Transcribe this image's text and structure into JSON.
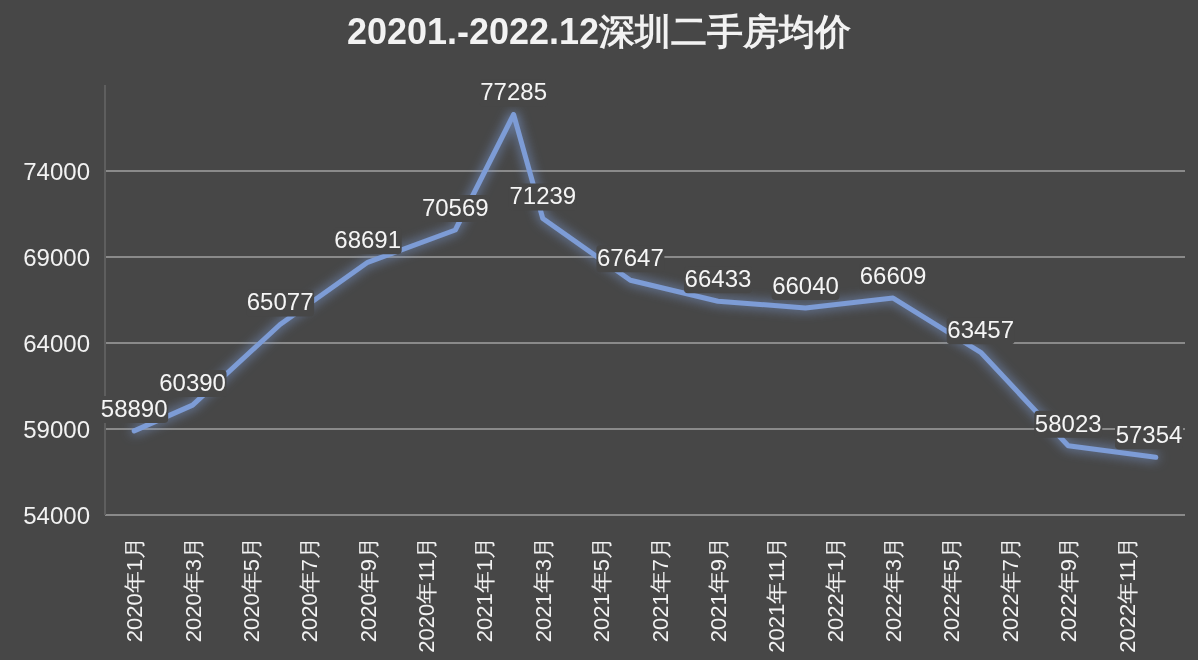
{
  "chart_data": {
    "type": "line",
    "title": "20201.-2022.12深圳二手房均价",
    "x": [
      "2020-01",
      "2020-03",
      "2020-06",
      "2020-09",
      "2020-12",
      "2021-02",
      "2021-03",
      "2021-06",
      "2021-09",
      "2021-12",
      "2022-03",
      "2022-06",
      "2022-09",
      "2022-12"
    ],
    "series": [
      {
        "color": "#7d9cd6",
        "values": [
          58890,
          60390,
          65077,
          68691,
          70569,
          77285,
          71239,
          67647,
          66433,
          66040,
          66609,
          63457,
          58023,
          57354
        ]
      }
    ],
    "xlim": [
      "2019-12",
      "2023-01"
    ],
    "xticks": [
      {
        "value": "2020-01",
        "label": "2020年1月"
      },
      {
        "value": "2020-03",
        "label": "2020年3月"
      },
      {
        "value": "2020-05",
        "label": "2020年5月"
      },
      {
        "value": "2020-07",
        "label": "2020年7月"
      },
      {
        "value": "2020-09",
        "label": "2020年9月"
      },
      {
        "value": "2020-11",
        "label": "2020年11月"
      },
      {
        "value": "2021-01",
        "label": "2021年1月"
      },
      {
        "value": "2021-03",
        "label": "2021年3月"
      },
      {
        "value": "2021-05",
        "label": "2021年5月"
      },
      {
        "value": "2021-07",
        "label": "2021年7月"
      },
      {
        "value": "2021-09",
        "label": "2021年9月"
      },
      {
        "value": "2021-11",
        "label": "2021年11月"
      },
      {
        "value": "2022-01",
        "label": "2022年1月"
      },
      {
        "value": "2022-03",
        "label": "2022年3月"
      },
      {
        "value": "2022-05",
        "label": "2022年5月"
      },
      {
        "value": "2022-07",
        "label": "2022年7月"
      },
      {
        "value": "2022-09",
        "label": "2022年9月"
      },
      {
        "value": "2022-11",
        "label": "2022年11月"
      }
    ],
    "ylim": [
      54000,
      79000
    ],
    "yticks": [
      54000,
      59000,
      64000,
      69000,
      74000
    ],
    "grid": "y",
    "data_labels": true,
    "line_style": "solid"
  }
}
